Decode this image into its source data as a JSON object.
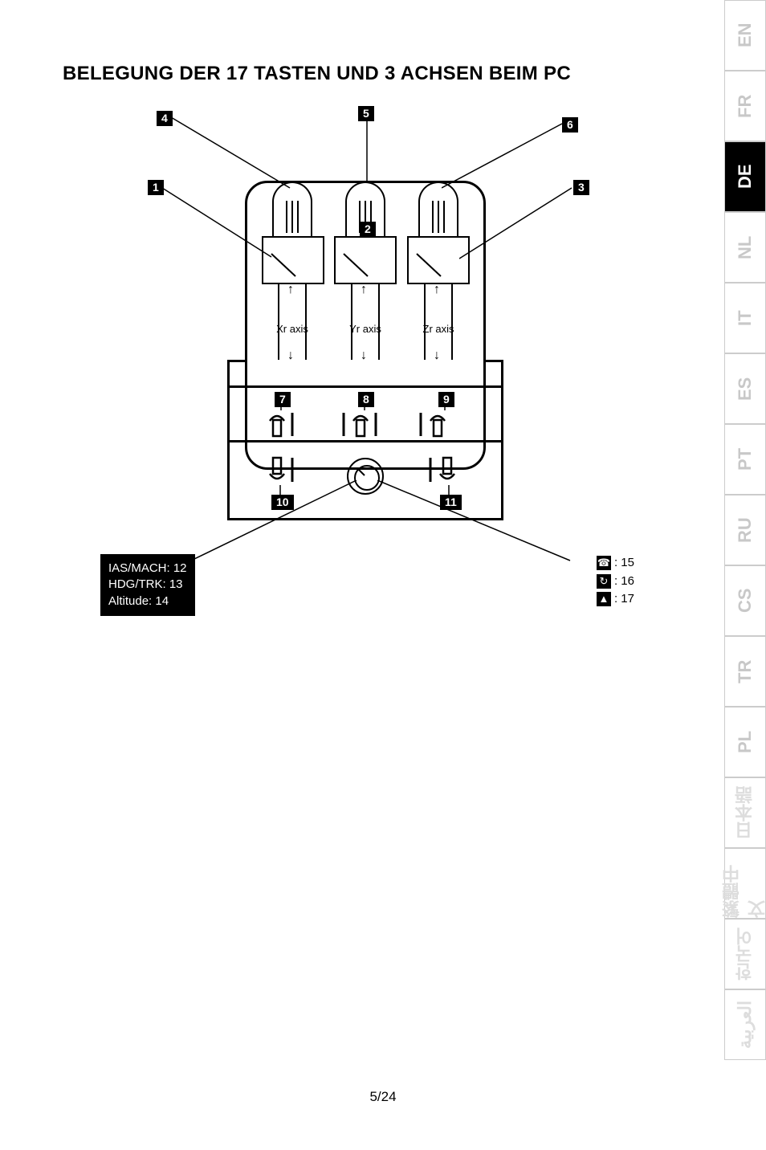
{
  "title": "BELEGUNG DER 17 TASTEN UND 3 ACHSEN BEIM PC",
  "page_number": "5/24",
  "langs": [
    {
      "code": "EN",
      "active": false
    },
    {
      "code": "FR",
      "active": false
    },
    {
      "code": "DE",
      "active": true
    },
    {
      "code": "NL",
      "active": false
    },
    {
      "code": "IT",
      "active": false
    },
    {
      "code": "ES",
      "active": false
    },
    {
      "code": "PT",
      "active": false
    },
    {
      "code": "RU",
      "active": false
    },
    {
      "code": "CS",
      "active": false
    },
    {
      "code": "TR",
      "active": false
    },
    {
      "code": "PL",
      "active": false
    },
    {
      "code": "日本語",
      "active": false,
      "faded": true
    },
    {
      "code": "繁體中文",
      "active": false,
      "faded": true
    },
    {
      "code": "한국어",
      "active": false,
      "faded": true
    },
    {
      "code": "العربية",
      "active": false,
      "faded": true
    }
  ],
  "callouts": {
    "n1": "1",
    "n2": "2",
    "n3": "3",
    "n4": "4",
    "n5": "5",
    "n6": "6",
    "n7": "7",
    "n8": "8",
    "n9": "9",
    "n10": "10",
    "n11": "11"
  },
  "axes": {
    "x": "Xr axis",
    "y": "Yr axis",
    "z": "Zr axis"
  },
  "left_box": {
    "l1": "IAS/MACH: 12",
    "l2": "HDG/TRK: 13",
    "l3": "Altitude: 14"
  },
  "right_box": {
    "r1": ": 15",
    "r2": ": 16",
    "r3": ": 17"
  },
  "colors": {
    "bg": "#ffffff",
    "ink": "#000000",
    "tab_inactive_text": "#c8c8c8",
    "tab_faded_text": "#dddddd",
    "tab_border": "#cccccc"
  }
}
